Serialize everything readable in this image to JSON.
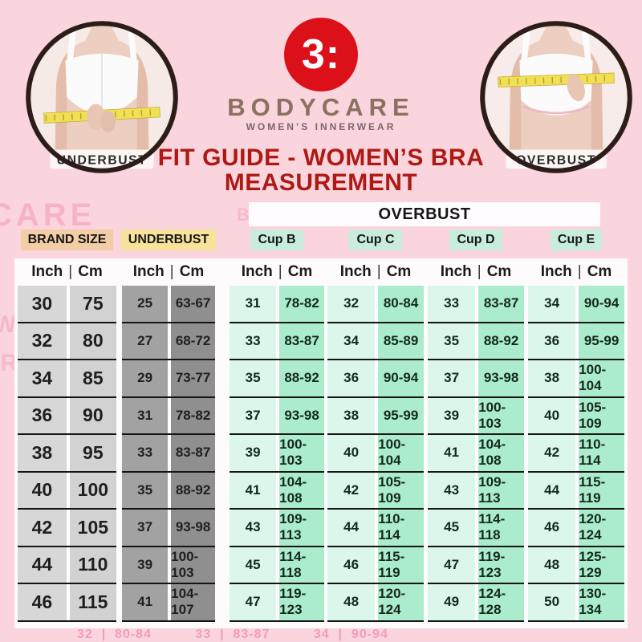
{
  "header": {
    "underbust_photo_label": "UNDERBUST",
    "overbust_photo_label": "OVERBUST",
    "logo_glyph": "3:",
    "brand_name": "BODYCARE",
    "brand_tagline": "WOMEN’S INNERWEAR",
    "title_line1": "FIT GUIDE - WOMEN’S BRA",
    "title_line2": "MEASUREMENT"
  },
  "chart_data": {
    "type": "table",
    "title": "FIT GUIDE - WOMEN’S BRA MEASUREMENT",
    "overbust_header": "OVERBUST",
    "unit_headers": {
      "inch": "Inch",
      "separator": "|",
      "cm": "Cm"
    },
    "column_groups": [
      {
        "key": "brand_size",
        "label": "BRAND SIZE",
        "under_overbust": false
      },
      {
        "key": "underbust",
        "label": "UNDERBUST",
        "under_overbust": false
      },
      {
        "key": "cup_b",
        "label": "Cup B",
        "under_overbust": true
      },
      {
        "key": "cup_c",
        "label": "Cup C",
        "under_overbust": true
      },
      {
        "key": "cup_d",
        "label": "Cup D",
        "under_overbust": true
      },
      {
        "key": "cup_e",
        "label": "Cup E",
        "under_overbust": true
      }
    ],
    "rows": [
      [
        [
          "30",
          "75"
        ],
        [
          "25",
          "63-67"
        ],
        [
          "31",
          "78-82"
        ],
        [
          "32",
          "80-84"
        ],
        [
          "33",
          "83-87"
        ],
        [
          "34",
          "90-94"
        ]
      ],
      [
        [
          "32",
          "80"
        ],
        [
          "27",
          "68-72"
        ],
        [
          "33",
          "83-87"
        ],
        [
          "34",
          "85-89"
        ],
        [
          "35",
          "88-92"
        ],
        [
          "36",
          "95-99"
        ]
      ],
      [
        [
          "34",
          "85"
        ],
        [
          "29",
          "73-77"
        ],
        [
          "35",
          "88-92"
        ],
        [
          "36",
          "90-94"
        ],
        [
          "37",
          "93-98"
        ],
        [
          "38",
          "100-104"
        ]
      ],
      [
        [
          "36",
          "90"
        ],
        [
          "31",
          "78-82"
        ],
        [
          "37",
          "93-98"
        ],
        [
          "38",
          "95-99"
        ],
        [
          "39",
          "100-103"
        ],
        [
          "40",
          "105-109"
        ]
      ],
      [
        [
          "38",
          "95"
        ],
        [
          "33",
          "83-87"
        ],
        [
          "39",
          "100-103"
        ],
        [
          "40",
          "100-104"
        ],
        [
          "41",
          "104-108"
        ],
        [
          "42",
          "110-114"
        ]
      ],
      [
        [
          "40",
          "100"
        ],
        [
          "35",
          "88-92"
        ],
        [
          "41",
          "104-108"
        ],
        [
          "42",
          "105-109"
        ],
        [
          "43",
          "109-113"
        ],
        [
          "44",
          "115-119"
        ]
      ],
      [
        [
          "42",
          "105"
        ],
        [
          "37",
          "93-98"
        ],
        [
          "43",
          "109-113"
        ],
        [
          "44",
          "110-114"
        ],
        [
          "45",
          "114-118"
        ],
        [
          "46",
          "120-124"
        ]
      ],
      [
        [
          "44",
          "110"
        ],
        [
          "39",
          "100-103"
        ],
        [
          "45",
          "114-118"
        ],
        [
          "46",
          "115-119"
        ],
        [
          "47",
          "119-123"
        ],
        [
          "48",
          "125-129"
        ]
      ],
      [
        [
          "46",
          "115"
        ],
        [
          "41",
          "104-107"
        ],
        [
          "47",
          "119-123"
        ],
        [
          "48",
          "120-124"
        ],
        [
          "49",
          "124-128"
        ],
        [
          "50",
          "130-134"
        ]
      ]
    ]
  },
  "colors": {
    "page_bg": "#fad5dd",
    "title_red": "#ad1a14",
    "brand_text": "#8c7060",
    "tagline_text": "#7b666c",
    "logo_red": "#dc1019",
    "chip_brand": "#f3cda5",
    "chip_underbust": "#f8e39a",
    "chip_cup": "#c8eedb",
    "brand_inch_bg": "#d7d7d7",
    "brand_cm_bg": "#d2d2d2",
    "underbust_inch_bg": "#a2a2a2",
    "underbust_cm_bg": "#8f8f8f",
    "cup_inch_bg": "#dbf6ea",
    "cup_cm_bg": "#abeccd",
    "row_line": "#141414",
    "table_bg": "#fdfbfc"
  },
  "watermarks": {
    "care": "CARE",
    "body": "BODY",
    "womens_bra": "WOMEN’S BRA",
    "measurement": "MEASUREMENT",
    "fit_guide": "FIT GUIDE -",
    "measur": "MEASUR",
    "bottom_row": "32  |  80-84          33  |  83-87          34  |  90-94"
  }
}
